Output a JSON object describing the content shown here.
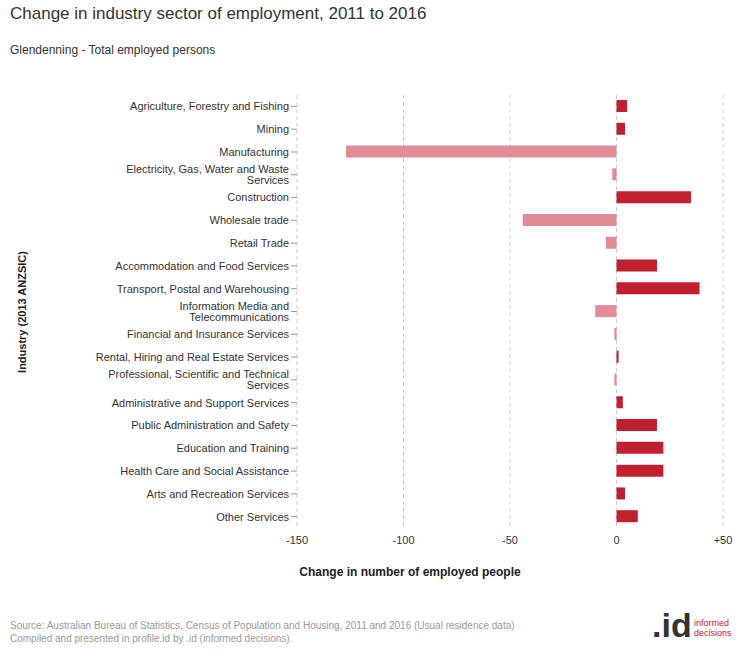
{
  "chart_data": {
    "type": "bar",
    "orientation": "horizontal",
    "title": "Change in industry sector of employment, 2011 to 2016",
    "subtitle": "Glendenning - Total employed persons",
    "x_label": "Change in number of employed people",
    "y_label": "Industry (2013 ANZSIC)",
    "categories": [
      "Agriculture, Forestry and Fishing",
      "Mining",
      "Manufacturing",
      "Electricity, Gas, Water and Waste Services",
      "Construction",
      "Wholesale trade",
      "Retail Trade",
      "Accommodation and Food Services",
      "Transport, Postal and Warehousing",
      "Information Media and Telecommunications",
      "Financial and Insurance Services",
      "Rental, Hiring and Real Estate Services",
      "Professional, Scientific and Technical Services",
      "Administrative and Support Services",
      "Public Administration and Safety",
      "Education and Training",
      "Health Care and Social Assistance",
      "Arts and Recreation Services",
      "Other Services"
    ],
    "values": [
      5,
      4,
      -127,
      -2,
      35,
      -44,
      -5,
      19,
      39,
      -10,
      -1,
      1,
      -1,
      3,
      19,
      22,
      22,
      4,
      10
    ],
    "colors": [
      "#c1202f",
      "#c1202f",
      "#e28c98",
      "#e28c98",
      "#c1202f",
      "#e28c98",
      "#e28c98",
      "#c1202f",
      "#c1202f",
      "#e28c98",
      "#e28c98",
      "#c1202f",
      "#e28c98",
      "#c1202f",
      "#c1202f",
      "#c1202f",
      "#c1202f",
      "#c1202f",
      "#c1202f"
    ],
    "xlim": [
      -150,
      50
    ],
    "xticks": [
      -150,
      -100,
      -50,
      0,
      {
        "value": 50,
        "label": "+50"
      }
    ],
    "grid": true,
    "source": [
      "Source: Australian Bureau of Statistics, Census of Population and Housing, 2011 and 2016 (Usual residence data)",
      "Compiled and presented in profile.id by .id (informed decisions)."
    ],
    "logo": {
      "mark": ".id",
      "text": [
        "informed",
        "decisions"
      ]
    }
  }
}
